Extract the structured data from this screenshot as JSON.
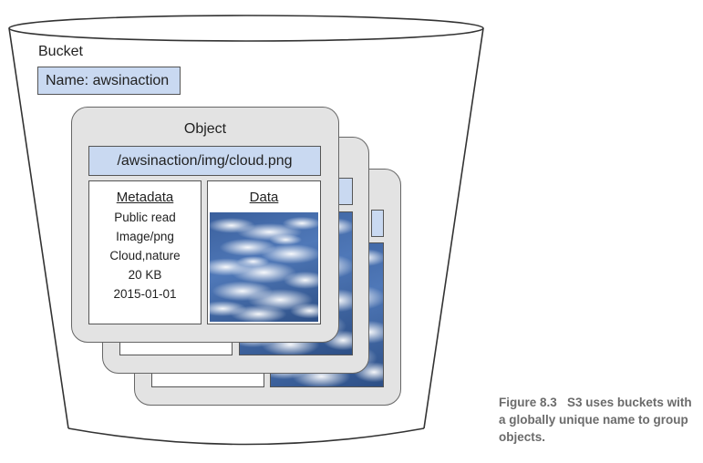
{
  "bucket": {
    "label": "Bucket",
    "name": "Name: awsinaction"
  },
  "object": {
    "title": "Object",
    "key": "/awsinaction/img/cloud.png",
    "metadata": {
      "title": "Metadata",
      "lines": [
        "Public read",
        "Image/png",
        "Cloud,nature",
        "20 KB",
        "2015-01-01"
      ]
    },
    "data": {
      "title": "Data"
    }
  },
  "caption": {
    "figure_label": "Figure 8.3",
    "text": "S3 uses buckets with a globally unique name to group objects."
  },
  "colors": {
    "stripe": "#c9d9f1",
    "card": "#e3e3e3",
    "sky": "#3a5f9c"
  },
  "icons": {
    "data_image": "cloud-sky-image"
  }
}
